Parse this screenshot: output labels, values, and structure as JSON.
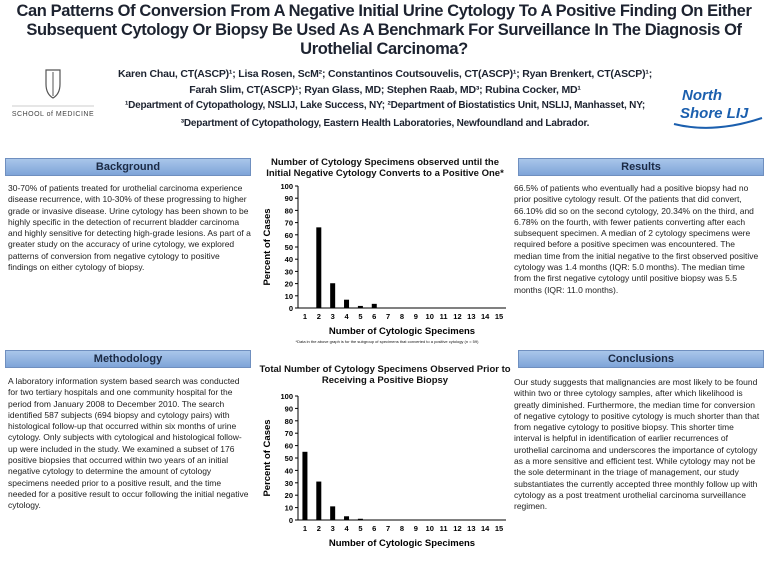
{
  "header": {
    "title": "Can Patterns Of Conversion From A Negative Initial Urine Cytology To A Positive Finding On Either Subsequent Cytology Or Biopsy Be Used As A Benchmark For Surveillance In The Diagnosis Of Urothelial Carcinoma?",
    "authors": "Karen Chau, CT(ASCP)¹; Lisa Rosen, ScM²; Constantinos Coutsouvelis, CT(ASCP)¹; Ryan Brenkert, CT(ASCP)¹; Farah Slim, CT(ASCP)¹; Ryan Glass, MD; Stephen Raab, MD³; Rubina Cocker, MD¹",
    "affiliations": [
      "¹Department of Cytopathology, NSLIJ, Lake Success, NY; ²Department of Biostatistics Unit, NSLIJ, Manhasset, NY;",
      "³Department of Cytopathology, Eastern Health Laboratories, Newfoundland and Labrador."
    ],
    "logos": {
      "school": "SCHOOL of MEDICINE",
      "health_system": [
        "North",
        "Shore LIJ"
      ]
    }
  },
  "sections": {
    "background": {
      "heading": "Background",
      "text": "30-70% of patients treated for urothelial carcinoma experience disease recurrence, with 10-30% of these progressing to higher grade or invasive disease. Urine cytology has been shown to be highly specific in the detection of recurrent bladder carcinoma and highly sensitive for detecting high-grade lesions. As part of a greater study on the accuracy of urine cytology, we explored patterns of conversion from negative cytology to positive findings on either cytology of biopsy."
    },
    "methodology": {
      "heading": "Methodology",
      "text": "A laboratory information system based search was conducted for two tertiary hospitals and one community hospital for the period from January 2008 to December 2010. The search identified 587 subjects (694 biopsy and cytology pairs) with histological follow-up that occurred within six months of urine cytology. Only subjects with cytological and histological follow-up were included in the study. We examined a subset of 176 positive biopsies that occurred within two years of an initial negative cytology to determine the amount of cytology specimens needed prior to a positive result, and the time needed for a positive result to occur following the initial negative cytology."
    },
    "results": {
      "heading": "Results",
      "text": "66.5% of patients who eventually had a positive biopsy had no prior positive cytology result. Of the patients that did convert, 66.10% did so on the second cytology, 20.34% on the third, and 6.78% on the fourth, with fewer patients converting after each subsequent specimen. A median of 2 cytology specimens were required before a positive specimen was encountered. The median time from the initial negative to the first observed positive cytology was 1.4 months (IQR: 5.0 months). The median time from the first negative cytology until positive biopsy was 5.5 months (IQR: 11.0 months)."
    },
    "conclusions": {
      "heading": "Conclusions",
      "text": "Our study suggests that malignancies are most likely to be found within two or three cytology samples, after which likelihood is greatly diminished. Furthermore, the median time for conversion of negative cytology to positive cytology is much shorter than that from negative cytology to positive biopsy. This shorter time interval is helpful in identification of earlier recurrences of urothelial carcinoma and underscores the importance of cytology as a more sensitive and efficient test. While cytology may not be the sole determinant in the triage of management, our study substantiates the currently accepted three monthly follow up with cytology as a post treatment urothelial carcinoma surveillance regimen."
    }
  },
  "chart_data": [
    {
      "type": "bar",
      "title": "Number of Cytology Specimens observed until the Initial Negative Cytology Converts to a Positive One*",
      "y_label": "Percent of Cases",
      "x_label": "Number of Cytologic Specimens",
      "categories": [
        1,
        2,
        3,
        4,
        5,
        6,
        7,
        8,
        9,
        10,
        11,
        12,
        13,
        14,
        15
      ],
      "values": [
        0,
        66.1,
        20.3,
        6.8,
        1.7,
        3.4,
        0,
        0,
        0,
        0,
        0,
        0,
        0,
        0,
        0
      ],
      "color": "#000000",
      "ylim": [
        0,
        100
      ],
      "yticks": [
        0,
        10,
        20,
        30,
        40,
        50,
        60,
        70,
        80,
        90,
        100
      ],
      "footnote": "*Data in the above graph is for the subgroup of specimens that converted to a positive cytology (n = 59)"
    },
    {
      "type": "bar",
      "title": "Total Number of Cytology Specimens Observed Prior to Receiving a Positive Biopsy",
      "y_label": "Percent of Cases",
      "x_label": "Number of Cytologic Specimens",
      "categories": [
        1,
        2,
        3,
        4,
        5,
        6,
        7,
        8,
        9,
        10,
        11,
        12,
        13,
        14,
        15
      ],
      "values": [
        55,
        31,
        11,
        3,
        1,
        0,
        0,
        0,
        0,
        0,
        0,
        0,
        0,
        0,
        0
      ],
      "color": "#000000",
      "ylim": [
        0,
        100
      ],
      "yticks": [
        0,
        10,
        20,
        30,
        40,
        50,
        60,
        70,
        80,
        90,
        100
      ]
    }
  ]
}
